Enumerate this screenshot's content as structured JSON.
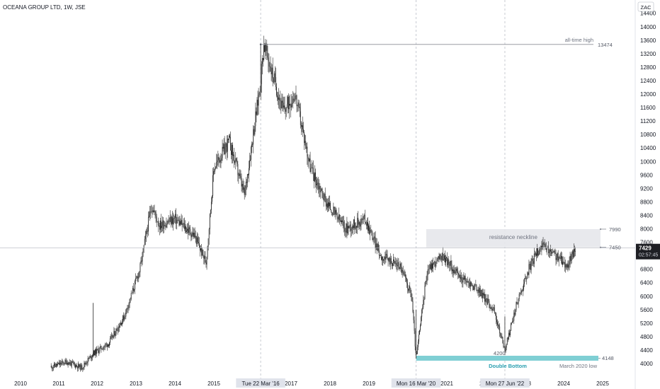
{
  "header": {
    "title": "OCEANA GROUP LTD, 1W, JSE"
  },
  "currency_badge": "ZAC",
  "price_tag": {
    "price": "7429",
    "timer": "02:57:45"
  },
  "annotations": {
    "ath_label": "all-time high",
    "ath_value": "13474",
    "resistance_label": "resistance neckline",
    "res_top": "7990",
    "res_bottom": "7450",
    "low_label": "4200",
    "low_value": "4148",
    "double_bottom": "Double Bottom",
    "march_low": "March 2020 low"
  },
  "crosshair_labels": [
    "Tue 22 Mar '16",
    "Mon 16 Mar '20",
    "Mon 27 Jun '22"
  ],
  "colors": {
    "candles": "#2b2b2b",
    "zone_fill": "#e6e7eb",
    "band_fill": "#7fcfd4",
    "band_text": "#2a9fb0",
    "price_tag": "#1e1f24"
  },
  "chart_data": {
    "type": "candlestick",
    "title": "OCEANA GROUP LTD, 1W, JSE",
    "y_unit": "ZAC",
    "ylim": [
      3750,
      14700
    ],
    "y_ticks": [
      4000,
      4400,
      4800,
      5200,
      5600,
      6000,
      6400,
      6800,
      7200,
      7600,
      8000,
      8400,
      8800,
      9200,
      9600,
      10000,
      10400,
      10800,
      11200,
      11600,
      12000,
      12400,
      12800,
      13200,
      13600,
      14000,
      14400
    ],
    "x_ticks": [
      "2010",
      "2011",
      "2012",
      "2013",
      "2014",
      "2015",
      "2016",
      "2017",
      "2018",
      "2019",
      "2020",
      "2021",
      "2022",
      "2023",
      "2024",
      "2025"
    ],
    "approx_close_path": [
      {
        "date": "2010.8",
        "price": 3900
      },
      {
        "date": "2011.2",
        "price": 4050
      },
      {
        "date": "2011.6",
        "price": 3880
      },
      {
        "date": "2011.9",
        "price": 4300
      },
      {
        "date": "2012.3",
        "price": 4600
      },
      {
        "date": "2012.7",
        "price": 5400
      },
      {
        "date": "2013.1",
        "price": 6800
      },
      {
        "date": "2013.4",
        "price": 8700
      },
      {
        "date": "2013.6",
        "price": 8100
      },
      {
        "date": "2014.0",
        "price": 8300
      },
      {
        "date": "2014.5",
        "price": 7800
      },
      {
        "date": "2014.8",
        "price": 7000
      },
      {
        "date": "2015.0",
        "price": 9800
      },
      {
        "date": "2015.4",
        "price": 10600
      },
      {
        "date": "2015.8",
        "price": 9000
      },
      {
        "date": "2016.2",
        "price": 12200
      },
      {
        "date": "2016.3",
        "price": 13474
      },
      {
        "date": "2016.8",
        "price": 11500
      },
      {
        "date": "2017.1",
        "price": 12000
      },
      {
        "date": "2017.5",
        "price": 9800
      },
      {
        "date": "2017.9",
        "price": 8800
      },
      {
        "date": "2018.4",
        "price": 8000
      },
      {
        "date": "2018.9",
        "price": 8300
      },
      {
        "date": "2019.3",
        "price": 7200
      },
      {
        "date": "2019.8",
        "price": 6900
      },
      {
        "date": "2020.1",
        "price": 6000
      },
      {
        "date": "2020.21",
        "price": 4148
      },
      {
        "date": "2020.5",
        "price": 6800
      },
      {
        "date": "2020.9",
        "price": 7200
      },
      {
        "date": "2021.3",
        "price": 6600
      },
      {
        "date": "2021.8",
        "price": 6200
      },
      {
        "date": "2022.2",
        "price": 5600
      },
      {
        "date": "2022.49",
        "price": 4400
      },
      {
        "date": "2022.8",
        "price": 5800
      },
      {
        "date": "2023.1",
        "price": 6800
      },
      {
        "date": "2023.4",
        "price": 7500
      },
      {
        "date": "2023.8",
        "price": 7200
      },
      {
        "date": "2024.1",
        "price": 6900
      },
      {
        "date": "2024.3",
        "price": 7429
      }
    ]
  }
}
